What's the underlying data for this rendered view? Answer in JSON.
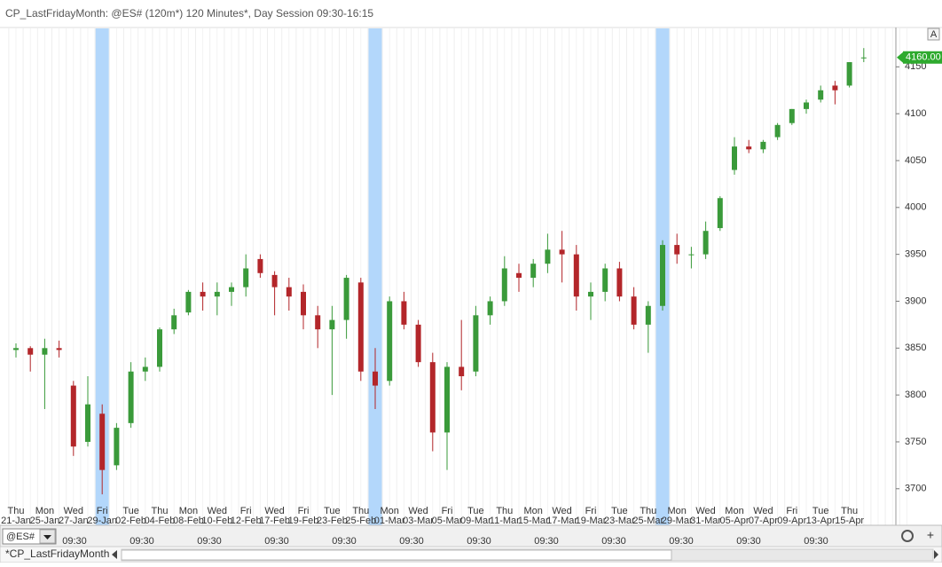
{
  "window_title": "CP_LastFridayMonth: @ES# (120m*) 120 Minutes*, Day Session 09:30-16:15",
  "symbol": "@ES#",
  "tab": "*CP_LastFridayMonth",
  "button": "A",
  "time_axis_labels": [
    "09:30",
    "09:30",
    "09:30",
    "09:30",
    "09:30",
    "09:30",
    "09:30",
    "09:30",
    "09:30",
    "09:30",
    "09:30",
    "09:30"
  ],
  "chart_data": {
    "type": "candlestick",
    "weekdays": [
      "Thu",
      null,
      "Mon",
      null,
      "Wed",
      null,
      "Fri",
      null,
      "Tue",
      null,
      "Thu",
      null,
      "Mon",
      null,
      "Wed",
      null,
      "Fri",
      null,
      "Wed",
      null,
      "Fri",
      null,
      "Tue",
      null,
      "Thu",
      null,
      "Mon",
      null,
      "Wed",
      null,
      "Fri",
      null,
      "Tue",
      null,
      "Thu",
      null,
      "Mon",
      null,
      "Wed",
      null,
      "Fri",
      null,
      "Tue",
      null,
      "Thu",
      null,
      "Mon",
      null,
      "Wed",
      null,
      "Mon",
      null,
      "Wed",
      null,
      "Fri",
      null,
      "Tue",
      null,
      "Thu",
      null
    ],
    "categories": [
      "21-Jan",
      null,
      "25-Jan",
      null,
      "27-Jan",
      null,
      "29-Jan",
      null,
      "02-Feb",
      null,
      "04-Feb",
      null,
      "08-Feb",
      null,
      "10-Feb",
      null,
      "12-Feb",
      null,
      "17-Feb",
      null,
      "19-Feb",
      null,
      "23-Feb",
      null,
      "25-Feb",
      null,
      "01-Mar",
      null,
      "03-Mar",
      null,
      "05-Mar",
      null,
      "09-Mar",
      null,
      "11-Mar",
      null,
      "15-Mar",
      null,
      "17-Mar",
      null,
      "19-Mar",
      null,
      "23-Mar",
      null,
      "25-Mar",
      null,
      "29-Mar",
      null,
      "31-Mar",
      null,
      "05-Apr",
      null,
      "07-Apr",
      null,
      "09-Apr",
      null,
      "13-Apr",
      null,
      "15-Apr",
      null
    ],
    "open": [
      3848,
      3850,
      3843,
      3850,
      3810,
      3750,
      3780,
      3725,
      3770,
      3825,
      3830,
      3870,
      3888,
      3910,
      3905,
      3910,
      3915,
      3945,
      3928,
      3915,
      3910,
      3885,
      3870,
      3880,
      3920,
      3825,
      3815,
      3900,
      3875,
      3835,
      3760,
      3830,
      3825,
      3885,
      3900,
      3930,
      3925,
      3940,
      3955,
      3950,
      3905,
      3910,
      3935,
      3905,
      3875,
      3895,
      3960,
      3950,
      3950,
      3978,
      4040,
      4065,
      4062,
      4075,
      4090,
      4105,
      4115,
      4130,
      4130,
      4160
    ],
    "high": [
      3855,
      3852,
      3860,
      3858,
      3815,
      3820,
      3790,
      3770,
      3835,
      3840,
      3872,
      3892,
      3912,
      3920,
      3920,
      3920,
      3950,
      3950,
      3932,
      3925,
      3918,
      3895,
      3895,
      3928,
      3925,
      3850,
      3905,
      3910,
      3880,
      3845,
      3835,
      3880,
      3895,
      3905,
      3948,
      3940,
      3945,
      3972,
      3975,
      3960,
      3920,
      3940,
      3942,
      3915,
      3900,
      3965,
      3972,
      3958,
      3985,
      4012,
      4075,
      4072,
      4072,
      4090,
      4105,
      4115,
      4130,
      4135,
      4155,
      4170
    ],
    "low": [
      3840,
      3825,
      3785,
      3840,
      3735,
      3745,
      3694,
      3720,
      3765,
      3815,
      3825,
      3865,
      3885,
      3890,
      3885,
      3895,
      3905,
      3925,
      3885,
      3890,
      3870,
      3850,
      3800,
      3860,
      3815,
      3785,
      3810,
      3870,
      3830,
      3740,
      3720,
      3805,
      3820,
      3875,
      3895,
      3910,
      3915,
      3930,
      3920,
      3890,
      3880,
      3900,
      3900,
      3870,
      3845,
      3890,
      3940,
      3935,
      3945,
      3975,
      4035,
      4058,
      4058,
      4072,
      4088,
      4100,
      4112,
      4110,
      4128,
      4155
    ],
    "close": [
      3850,
      3843,
      3850,
      3848,
      3745,
      3790,
      3720,
      3765,
      3825,
      3830,
      3870,
      3885,
      3910,
      3905,
      3910,
      3915,
      3935,
      3930,
      3915,
      3905,
      3885,
      3870,
      3880,
      3925,
      3825,
      3810,
      3900,
      3875,
      3835,
      3760,
      3830,
      3820,
      3885,
      3900,
      3935,
      3925,
      3940,
      3955,
      3950,
      3905,
      3910,
      3935,
      3905,
      3875,
      3895,
      3960,
      3950,
      3950,
      3975,
      4010,
      4065,
      4062,
      4070,
      4088,
      4105,
      4112,
      4125,
      4125,
      4155,
      4160
    ],
    "highlighted": [
      false,
      false,
      false,
      false,
      false,
      false,
      true,
      false,
      false,
      false,
      false,
      false,
      false,
      false,
      false,
      false,
      false,
      false,
      false,
      false,
      false,
      false,
      false,
      false,
      false,
      true,
      false,
      false,
      false,
      false,
      false,
      false,
      false,
      false,
      false,
      false,
      false,
      false,
      false,
      false,
      false,
      false,
      false,
      false,
      false,
      true,
      false,
      false,
      false,
      false,
      false,
      false,
      false,
      false,
      false,
      false,
      false,
      false,
      false,
      false
    ],
    "highlight_color": "#b3d7fb",
    "up_color": "#3a9a3a",
    "down_color": "#b3262a",
    "ylim": [
      3661,
      4191
    ],
    "yticks": [
      3700,
      3750,
      3800,
      3850,
      3900,
      3950,
      4000,
      4050,
      4100,
      4150
    ],
    "last_price": {
      "value": 4160,
      "label": "4160.00"
    },
    "last_price_color": "#2eaa2e"
  }
}
